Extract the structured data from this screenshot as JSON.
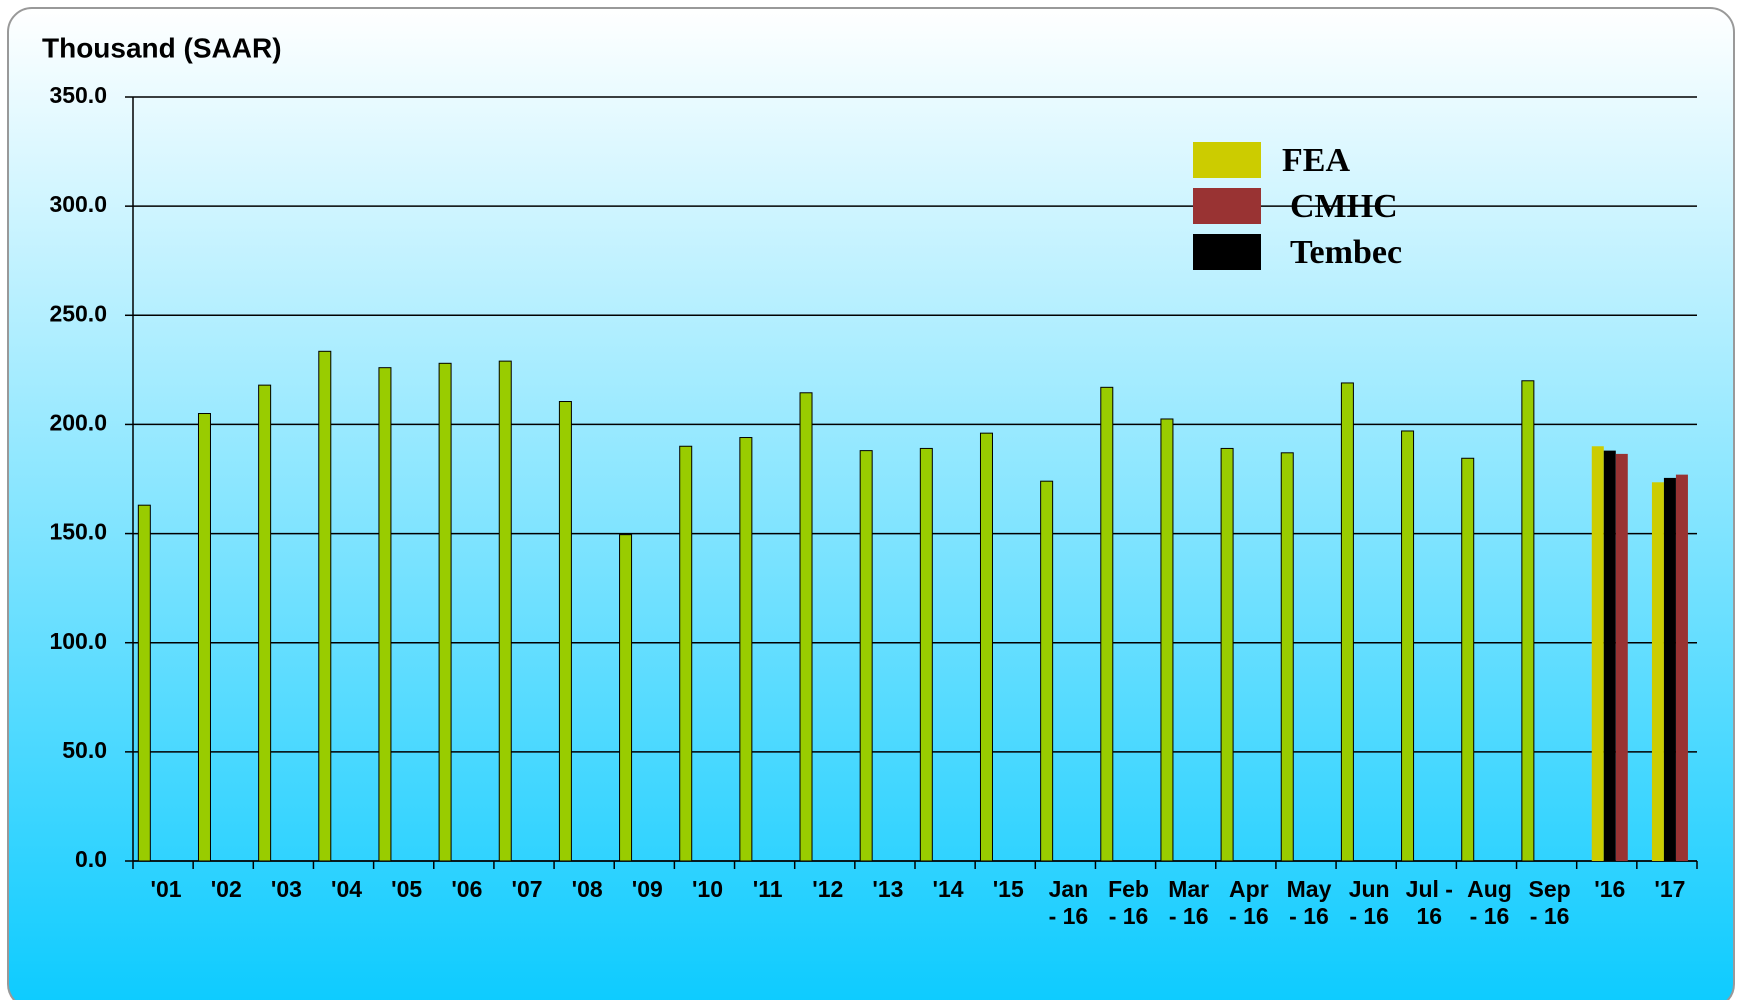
{
  "chart_data": {
    "type": "bar",
    "y_label": "Thousand (SAAR)",
    "categories": [
      "'01",
      "'02",
      "'03",
      "'04",
      "'05",
      "'06",
      "'07",
      "'08",
      "'09",
      "'10",
      "'11",
      "'12",
      "'13",
      "'14",
      "'15",
      "Jan\n- 16",
      "Feb\n- 16",
      "Mar\n- 16",
      "Apr\n- 16",
      "May\n- 16",
      "Jun\n- 16",
      "Jul -\n16",
      "Aug\n- 16",
      "Sep\n- 16",
      "'16",
      "'17"
    ],
    "series": [
      {
        "color": "#99cc00",
        "values": [
          163,
          205,
          218,
          233.5,
          226,
          228,
          229,
          210.5,
          149.5,
          190,
          194,
          214.5,
          188,
          189,
          196,
          174,
          217,
          202.5,
          189,
          187,
          219,
          197,
          184.5,
          220,
          null,
          null
        ]
      },
      {
        "name": "FEA",
        "color": "#cccc00",
        "values": [
          null,
          null,
          null,
          null,
          null,
          null,
          null,
          null,
          null,
          null,
          null,
          null,
          null,
          null,
          null,
          null,
          null,
          null,
          null,
          null,
          null,
          null,
          null,
          null,
          190,
          173.5
        ]
      },
      {
        "name": "Tembec",
        "color": "#000000",
        "values": [
          null,
          null,
          null,
          null,
          null,
          null,
          null,
          null,
          null,
          null,
          null,
          null,
          null,
          null,
          null,
          null,
          null,
          null,
          null,
          null,
          null,
          null,
          null,
          null,
          188,
          175.5
        ]
      },
      {
        "name": "CMHC",
        "color": "#993333",
        "values": [
          null,
          null,
          null,
          null,
          null,
          null,
          null,
          null,
          null,
          null,
          null,
          null,
          null,
          null,
          null,
          null,
          null,
          null,
          null,
          null,
          null,
          null,
          null,
          null,
          186.5,
          177
        ]
      }
    ],
    "legend_order": [
      "FEA",
      "CMHC",
      "Tembec"
    ],
    "ylim": [
      0,
      350
    ],
    "yticks": [
      {
        "value": 0,
        "label": "0.0"
      },
      {
        "value": 50,
        "label": "50.0"
      },
      {
        "value": 100,
        "label": "100.0"
      },
      {
        "value": 150,
        "label": "150.0"
      },
      {
        "value": 200,
        "label": "200.0"
      },
      {
        "value": 250,
        "label": "250.0"
      },
      {
        "value": 300,
        "label": "300.0"
      },
      {
        "value": 350,
        "label": "350.0"
      }
    ],
    "grid": true
  }
}
